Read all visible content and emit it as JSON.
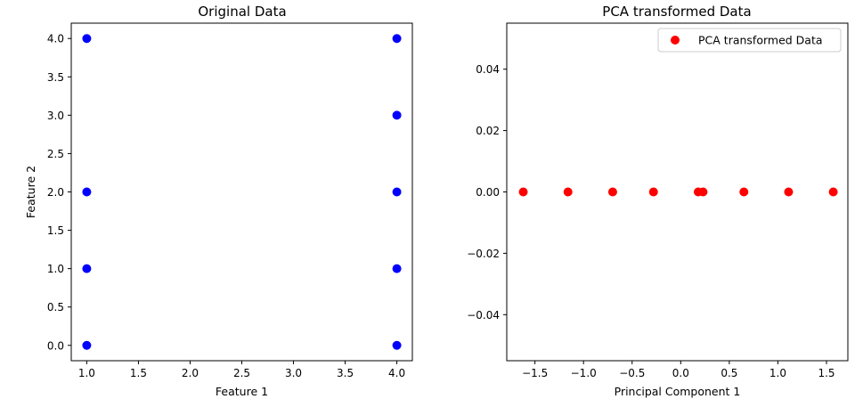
{
  "colors": {
    "original": "#0000ff",
    "pca": "#ff0000",
    "background": "#ffffff"
  },
  "chart_data": [
    {
      "type": "scatter",
      "title": "Original Data",
      "xlabel": "Feature 1",
      "ylabel": "Feature 2",
      "xlim": [
        0.85,
        4.15
      ],
      "ylim": [
        -0.2,
        4.2
      ],
      "xticks": [
        1.0,
        1.5,
        2.0,
        2.5,
        3.0,
        3.5,
        4.0
      ],
      "xtick_labels": [
        "1.0",
        "1.5",
        "2.0",
        "2.5",
        "3.0",
        "3.5",
        "4.0"
      ],
      "yticks": [
        0.0,
        0.5,
        1.0,
        1.5,
        2.0,
        2.5,
        3.0,
        3.5,
        4.0
      ],
      "ytick_labels": [
        "0.0",
        "0.5",
        "1.0",
        "1.5",
        "2.0",
        "2.5",
        "3.0",
        "3.5",
        "4.0"
      ],
      "grid": false,
      "series": [
        {
          "color": "#0000ff",
          "x": [
            1,
            1,
            1,
            1,
            4,
            4,
            4,
            4,
            4
          ],
          "y": [
            0,
            1,
            2,
            4,
            0,
            1,
            2,
            3,
            4
          ]
        }
      ]
    },
    {
      "type": "scatter",
      "title": "PCA transformed Data",
      "xlabel": "Principal Component 1",
      "ylabel": "",
      "xlim": [
        -1.79,
        1.72
      ],
      "ylim": [
        -0.055,
        0.055
      ],
      "xticks": [
        -1.5,
        -1.0,
        -0.5,
        0.0,
        0.5,
        1.0,
        1.5
      ],
      "xtick_labels": [
        "−1.5",
        "−1.0",
        "−0.5",
        "0.0",
        "0.5",
        "1.0",
        "1.5"
      ],
      "yticks": [
        -0.04,
        -0.02,
        0.0,
        0.02,
        0.04
      ],
      "ytick_labels": [
        "−0.04",
        "−0.02",
        "0.00",
        "0.02",
        "0.04"
      ],
      "grid": false,
      "legend": {
        "placement": "top-right",
        "entries": [
          "PCA transformed Data"
        ]
      },
      "series": [
        {
          "name": "PCA transformed Data",
          "color": "#ff0000",
          "x": [
            -1.62,
            -1.16,
            -0.7,
            -0.28,
            0.18,
            0.23,
            0.65,
            1.11,
            1.57
          ],
          "y": [
            0,
            0,
            0,
            0,
            0,
            0,
            0,
            0,
            0
          ]
        }
      ]
    }
  ]
}
